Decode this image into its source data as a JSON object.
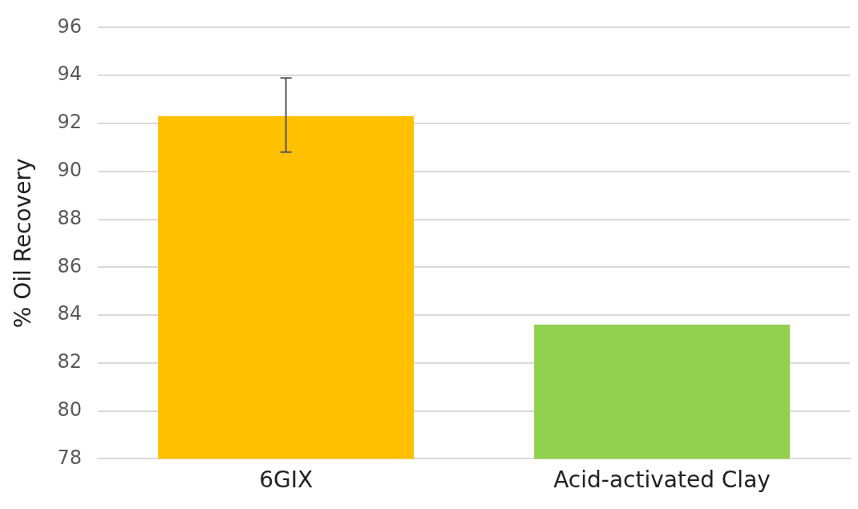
{
  "chart_data": {
    "type": "bar",
    "ylabel": "% Oil Recovery",
    "categories": [
      "6GIX",
      "Acid-activated Clay"
    ],
    "values": [
      92.3,
      83.6
    ],
    "colors": [
      "#ffc000",
      "#92d050"
    ],
    "errors": [
      [
        90.8,
        93.9
      ],
      null
    ],
    "ylim": [
      78,
      96
    ],
    "yticks": [
      78,
      80,
      82,
      84,
      86,
      88,
      90,
      92,
      94,
      96
    ],
    "grid": "y",
    "legend": false
  }
}
